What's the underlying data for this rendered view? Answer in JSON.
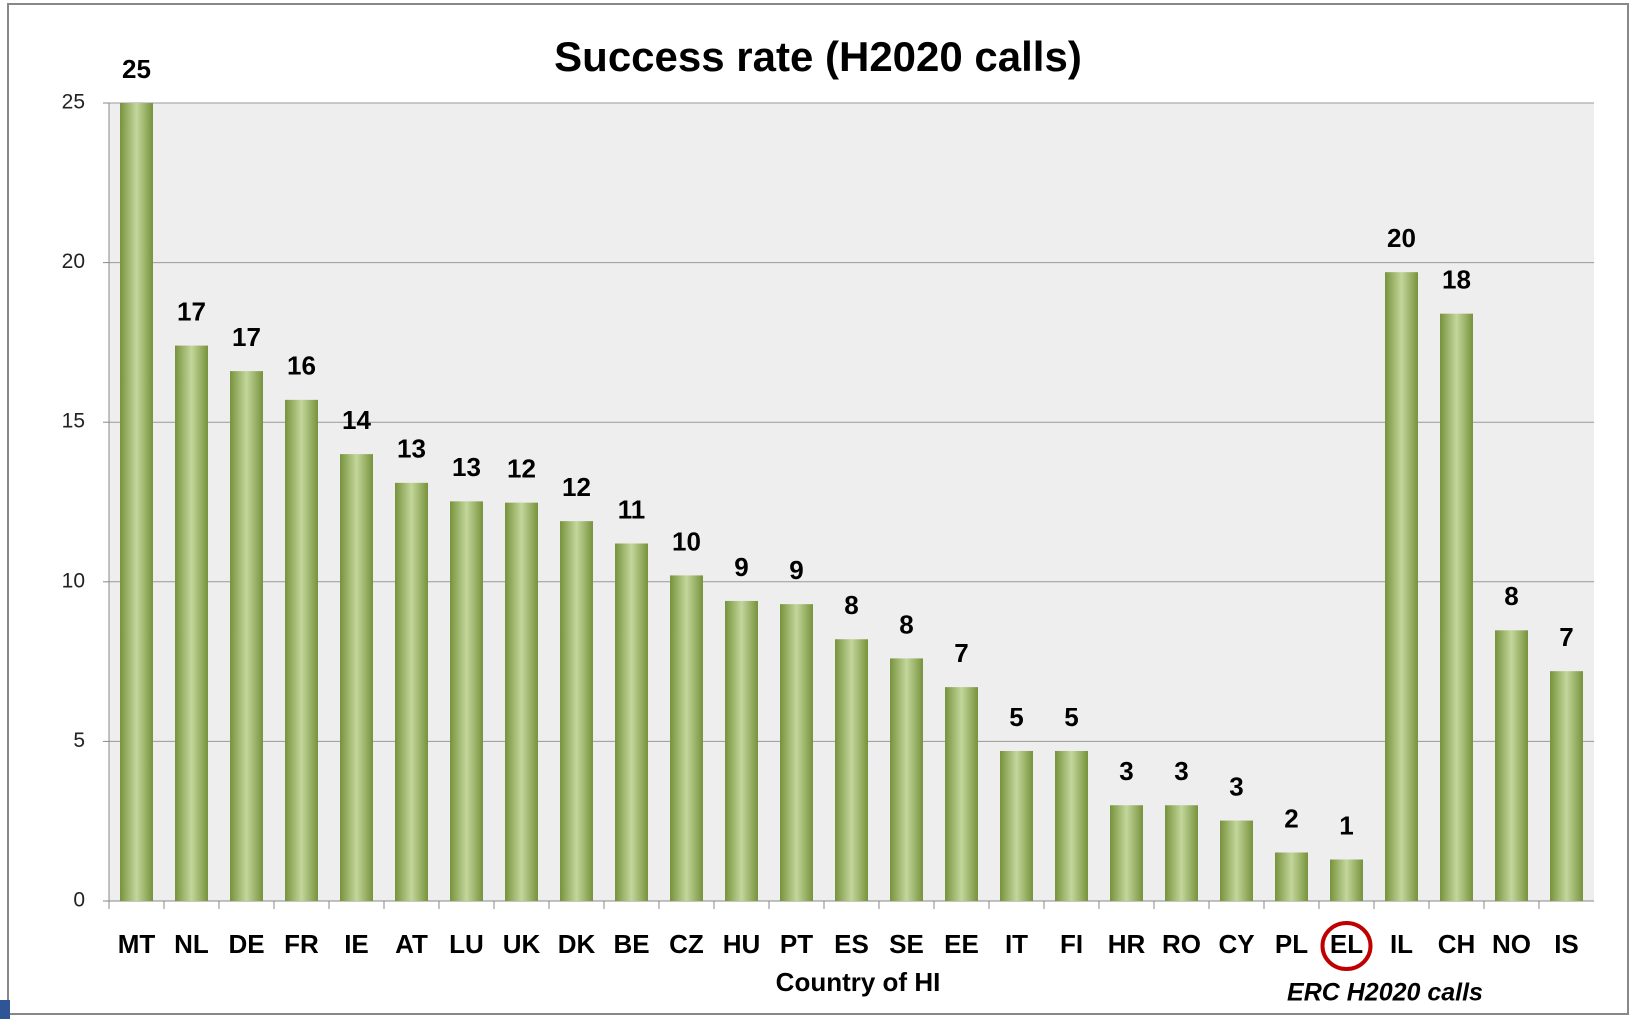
{
  "chart_data": {
    "type": "bar",
    "title": "Success rate (H2020 calls)",
    "x_label": "Country of HI",
    "annotation": "ERC H2020 calls",
    "categories": [
      "MT",
      "NL",
      "DE",
      "FR",
      "IE",
      "AT",
      "LU",
      "UK",
      "DK",
      "BE",
      "CZ",
      "HU",
      "PT",
      "ES",
      "SE",
      "EE",
      "IT",
      "FI",
      "HR",
      "RO",
      "CY",
      "PL",
      "EL",
      "IL",
      "CH",
      "NO",
      "IS"
    ],
    "values": [
      25,
      17.4,
      16.6,
      15.7,
      14.0,
      13.1,
      12.52,
      12.48,
      11.9,
      11.2,
      10.2,
      9.4,
      9.3,
      8.2,
      7.6,
      6.7,
      4.7,
      4.7,
      3.0,
      3.0,
      2.52,
      1.52,
      1.3,
      19.7,
      18.4,
      8.48,
      7.2
    ],
    "value_labels": [
      "25",
      "17",
      "17",
      "16",
      "14",
      "13",
      "13",
      "12",
      "12",
      "11",
      "10",
      "9",
      "9",
      "8",
      "8",
      "7",
      "5",
      "5",
      "3",
      "3",
      "3",
      "2",
      "1",
      "20",
      "18",
      "8",
      "7"
    ],
    "color": "#9bbb59",
    "ylim": [
      0,
      25
    ],
    "yticks": [
      0,
      5,
      10,
      15,
      20,
      25
    ],
    "grid": true
  }
}
